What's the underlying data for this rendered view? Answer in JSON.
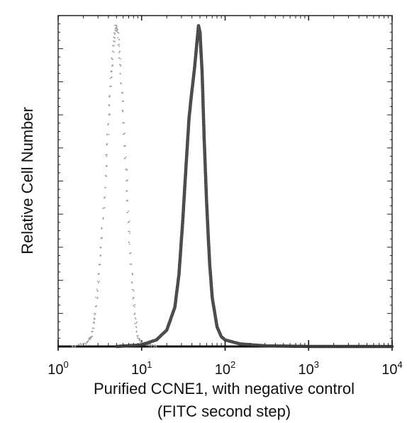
{
  "chart_data": {
    "type": "area",
    "title": "",
    "ylabel": "Relative Cell Number",
    "xlabel_lines": [
      "Purified CCNE1, with negative control",
      "(FITC second step)"
    ],
    "x_scale": "log",
    "xlim": [
      1,
      10000
    ],
    "ylim": [
      0,
      100
    ],
    "grid": false,
    "legend": "none",
    "x_ticks": [
      {
        "base": "10",
        "exp": "0",
        "value": 1
      },
      {
        "base": "10",
        "exp": "1",
        "value": 10
      },
      {
        "base": "10",
        "exp": "2",
        "value": 100
      },
      {
        "base": "10",
        "exp": "3",
        "value": 1000
      },
      {
        "base": "10",
        "exp": "4",
        "value": 10000
      }
    ],
    "series": [
      {
        "line_style": "dotted",
        "color": "#9a9a9a",
        "x": [
          1.5,
          2.2,
          2.5,
          2.8,
          3.1,
          3.4,
          3.7,
          4.0,
          4.3,
          4.6,
          4.9,
          5.2,
          5.6,
          6.0,
          6.5,
          7.0,
          7.6,
          8.2,
          9.0,
          10.0,
          12.0,
          15.0
        ],
        "y": [
          0,
          1,
          3,
          10,
          22,
          36,
          52,
          68,
          82,
          92,
          98,
          96,
          86,
          72,
          54,
          38,
          22,
          10,
          3,
          1,
          0.5,
          0
        ]
      },
      {
        "line_style": "solid",
        "color": "#333333",
        "x": [
          5,
          10,
          15,
          20,
          25,
          28,
          31,
          34,
          37,
          40,
          43,
          46,
          48,
          50,
          53,
          56,
          60,
          65,
          70,
          80,
          90,
          100,
          150,
          300,
          1000,
          10000
        ],
        "y": [
          0,
          0.5,
          2,
          5,
          12,
          22,
          38,
          55,
          70,
          78,
          85,
          93,
          98,
          96,
          84,
          64,
          44,
          26,
          15,
          6,
          3,
          2,
          0.8,
          0.2,
          0,
          0
        ]
      }
    ]
  }
}
